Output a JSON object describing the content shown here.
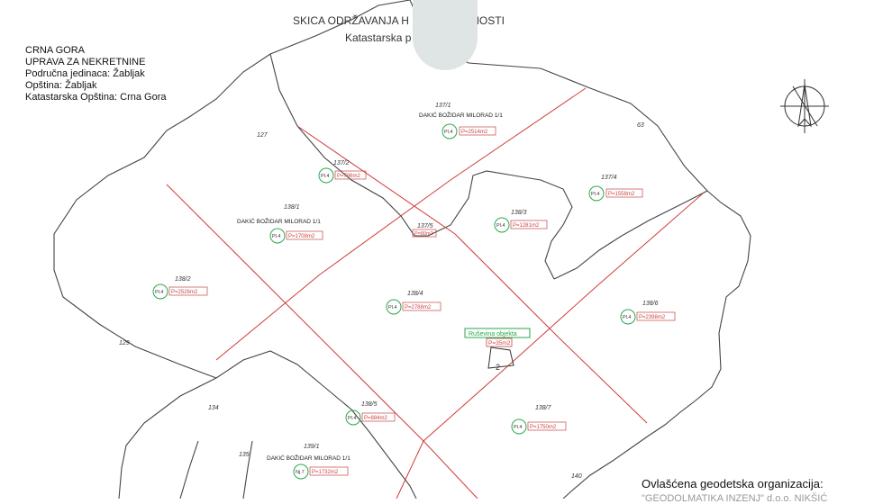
{
  "sketch": {
    "title": "SKICA ODRŽAVANJA H NEPOKRETNOSTI",
    "subtitle": "Katastarska p 37, 138 I 139"
  },
  "header": {
    "line1": "CRNA GORA",
    "line2": "UPRAVA ZA NEKRETNINE",
    "line3": "Područna jedinaca: Žabljak",
    "line4": "Opština: Žabljak",
    "line5": "Katastarska Opština: Crna Gora"
  },
  "parcels": [
    {
      "id": "137/1",
      "owner": "DAKIĆ BOŽIDAR MILORAD 1/1",
      "code": "Pl.4",
      "area": "P=2514m2"
    },
    {
      "id": "137/2",
      "code": "Pl.4",
      "area": "P=786m2"
    },
    {
      "id": "137/4",
      "code": "Pl.4",
      "area": "P=1558m2"
    },
    {
      "id": "138/1",
      "owner": "DAKIĆ BOŽIDAR MILORAD 1/1",
      "code": "Pl.4",
      "area": "P=1708m2"
    },
    {
      "id": "137/5",
      "area": "P=80m2"
    },
    {
      "id": "138/3",
      "code": "Pl.4",
      "area": "P=1281m2"
    },
    {
      "id": "138/2",
      "code": "Pl.4",
      "area": "P=2526m2"
    },
    {
      "id": "138/4",
      "code": "Pl.4",
      "area": "P=2788m2"
    },
    {
      "id": "138/6",
      "code": "Pl.4",
      "area": "P=2398m2"
    },
    {
      "id": "138/5",
      "code": "Pl.4",
      "area": "P=884m2"
    },
    {
      "id": "138/7",
      "code": "Pl.4",
      "area": "P=1750m2"
    },
    {
      "id": "139/1",
      "owner": "DAKIĆ BOŽIDAR MILORAD 1/1",
      "code": "Nj.7",
      "area": "P=1732m2"
    }
  ],
  "ruins": {
    "label": "Ruševina objekta",
    "area": "P=35m2",
    "num": "2"
  },
  "neighbors": [
    "127",
    "63",
    "129",
    "134",
    "135",
    "140"
  ],
  "organization": {
    "label": "Ovlašćena geodetska organizacija:",
    "name": "\"GEODOLMATIKA INZENJ\" d.o.o. NIKŠIĆ"
  },
  "colors": {
    "parcel_line": "#d03a3a",
    "circle": "#2aa84a",
    "boundary": "#444444",
    "area_box": "#c94444"
  }
}
